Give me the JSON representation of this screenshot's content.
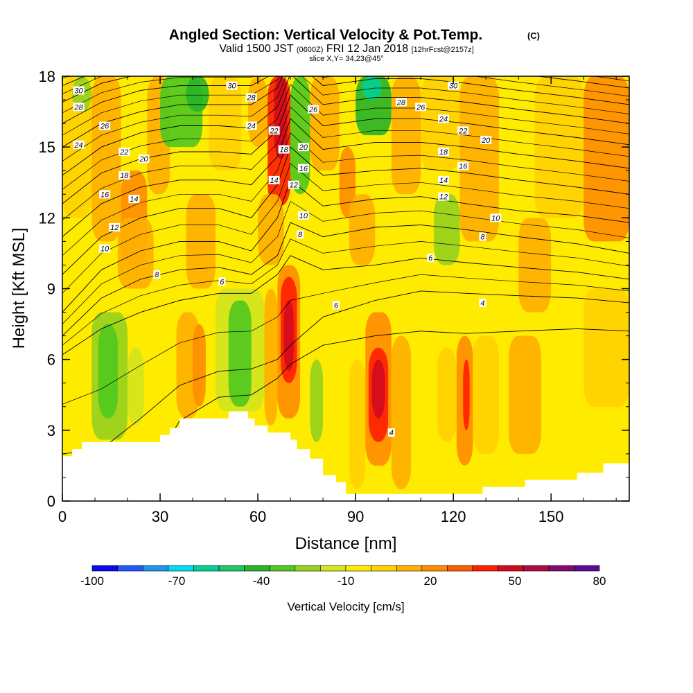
{
  "chart_data": {
    "type": "heatmap",
    "title": "Angled Section: Vertical Velocity & Pot.Temp.",
    "title_mark": "(C)",
    "subtitle": {
      "valid_text": "Valid 1500 JST",
      "utc_text": "(0600Z)",
      "date_text": "FRI 12 Jan 2018",
      "forecast_text": "[12hrFcst@2157z]"
    },
    "slice_text": "slice X,Y= 34,23@45°",
    "xlabel": "Distance [nm]",
    "ylabel": "Height [Kft MSL]",
    "xlim": [
      0,
      174
    ],
    "ylim": [
      0,
      18
    ],
    "xticks": [
      0,
      30,
      60,
      90,
      120,
      150
    ],
    "yticks": [
      0,
      3,
      6,
      9,
      12,
      15,
      18
    ],
    "colorbar": {
      "label": "Vertical Velocity [cm/s]",
      "tick_labels": [
        "-100",
        "-70",
        "-40",
        "-10",
        "20",
        "50",
        "80"
      ],
      "tick_values": [
        -100,
        -70,
        -40,
        -10,
        20,
        50,
        80
      ],
      "range": [
        -100,
        80
      ],
      "colors": [
        "#0a0af0",
        "#1e5af5",
        "#1e96f0",
        "#00dcf0",
        "#00d296",
        "#1ec864",
        "#28b428",
        "#50c81e",
        "#96d21e",
        "#d2e61e",
        "#ffeb00",
        "#ffd200",
        "#ffaf00",
        "#ff8c00",
        "#ff5a00",
        "#ff1e00",
        "#d20a1e",
        "#aa0a46",
        "#820a6e",
        "#5a0a96"
      ]
    },
    "terrain_profile": {
      "x": [
        0,
        3,
        3,
        6,
        6,
        30,
        30,
        33,
        33,
        36,
        36,
        51,
        51,
        57,
        57,
        59,
        59,
        63,
        63,
        70,
        70,
        72,
        72,
        76,
        76,
        80,
        80,
        84,
        84,
        87,
        87,
        93,
        93,
        129,
        129,
        142,
        142,
        158,
        158,
        166,
        166,
        174
      ],
      "y": [
        1.9,
        1.9,
        2.2,
        2.2,
        2.5,
        2.5,
        2.8,
        2.8,
        3.1,
        3.1,
        3.5,
        3.5,
        3.8,
        3.8,
        3.5,
        3.5,
        3.2,
        3.2,
        2.9,
        2.9,
        2.6,
        2.6,
        2.2,
        2.2,
        1.8,
        1.8,
        1.1,
        1.1,
        0.8,
        0.8,
        0.3,
        0.3,
        0.3,
        0.3,
        0.6,
        0.6,
        0.9,
        0.9,
        1.2,
        1.2,
        1.6,
        1.6
      ]
    },
    "velocity_cells": [
      {
        "x": [
          0,
          9
        ],
        "y": [
          12,
          18
        ],
        "w": 5
      },
      {
        "x": [
          3,
          9
        ],
        "y": [
          16.5,
          18
        ],
        "w": -20
      },
      {
        "x": [
          9,
          18
        ],
        "y": [
          11,
          18
        ],
        "w": 15
      },
      {
        "x": [
          18,
          26
        ],
        "y": [
          10,
          14
        ],
        "w": 20
      },
      {
        "x": [
          26,
          33
        ],
        "y": [
          13,
          18
        ],
        "w": 10
      },
      {
        "x": [
          30,
          43
        ],
        "y": [
          15,
          18
        ],
        "w": -30
      },
      {
        "x": [
          38,
          45
        ],
        "y": [
          16.5,
          18
        ],
        "w": -45
      },
      {
        "x": [
          45,
          55
        ],
        "y": [
          14,
          18
        ],
        "w": 5
      },
      {
        "x": [
          57,
          63
        ],
        "y": [
          15,
          18
        ],
        "w": 15
      },
      {
        "x": [
          63,
          70
        ],
        "y": [
          12.5,
          18
        ],
        "w": 35
      },
      {
        "x": [
          65,
          69
        ],
        "y": [
          14.5,
          18
        ],
        "w": 50
      },
      {
        "x": [
          70,
          76
        ],
        "y": [
          13,
          18
        ],
        "w": -30
      },
      {
        "x": [
          76,
          85
        ],
        "y": [
          14,
          18
        ],
        "w": 10
      },
      {
        "x": [
          85,
          90
        ],
        "y": [
          12,
          15
        ],
        "w": 20
      },
      {
        "x": [
          90,
          101
        ],
        "y": [
          15.5,
          18
        ],
        "w": -40
      },
      {
        "x": [
          92,
          98
        ],
        "y": [
          17,
          18
        ],
        "w": -60
      },
      {
        "x": [
          101,
          110
        ],
        "y": [
          13,
          18
        ],
        "w": 15
      },
      {
        "x": [
          110,
          122
        ],
        "y": [
          14,
          18
        ],
        "w": 5
      },
      {
        "x": [
          122,
          134
        ],
        "y": [
          11,
          18
        ],
        "w": 15
      },
      {
        "x": [
          134,
          145
        ],
        "y": [
          10,
          18
        ],
        "w": -10
      },
      {
        "x": [
          145,
          160
        ],
        "y": [
          12,
          18
        ],
        "w": 5
      },
      {
        "x": [
          160,
          174
        ],
        "y": [
          11,
          18
        ],
        "w": 20
      },
      {
        "x": [
          17,
          28
        ],
        "y": [
          9,
          12
        ],
        "w": 15
      },
      {
        "x": [
          38,
          47
        ],
        "y": [
          9,
          13
        ],
        "w": 10
      },
      {
        "x": [
          60,
          68
        ],
        "y": [
          10,
          13
        ],
        "w": 15
      },
      {
        "x": [
          88,
          96
        ],
        "y": [
          10,
          13
        ],
        "w": 15
      },
      {
        "x": [
          104,
          112
        ],
        "y": [
          9,
          12
        ],
        "w": -10
      },
      {
        "x": [
          114,
          122
        ],
        "y": [
          10,
          13
        ],
        "w": -20
      },
      {
        "x": [
          140,
          150
        ],
        "y": [
          8,
          12
        ],
        "w": 10
      },
      {
        "x": [
          166,
          174
        ],
        "y": [
          8.5,
          11
        ],
        "w": -10
      },
      {
        "x": [
          4,
          15
        ],
        "y": [
          3,
          8.5
        ],
        "w": -10
      },
      {
        "x": [
          9,
          20
        ],
        "y": [
          2.6,
          8
        ],
        "w": -25
      },
      {
        "x": [
          11,
          17
        ],
        "y": [
          3.5,
          7.5
        ],
        "w": -35
      },
      {
        "x": [
          20,
          25
        ],
        "y": [
          3.2,
          6.5
        ],
        "w": -15
      },
      {
        "x": [
          35,
          42
        ],
        "y": [
          3.5,
          8
        ],
        "w": 15
      },
      {
        "x": [
          40,
          44
        ],
        "y": [
          4,
          7.5
        ],
        "w": 25
      },
      {
        "x": [
          47,
          62
        ],
        "y": [
          3.8,
          9
        ],
        "w": -15
      },
      {
        "x": [
          51,
          58
        ],
        "y": [
          4,
          8.5
        ],
        "w": -30
      },
      {
        "x": [
          62,
          66
        ],
        "y": [
          3.2,
          9
        ],
        "w": 10
      },
      {
        "x": [
          66,
          73
        ],
        "y": [
          3.5,
          10
        ],
        "w": 25
      },
      {
        "x": [
          67,
          72
        ],
        "y": [
          5,
          9.5
        ],
        "w": 40
      },
      {
        "x": [
          68,
          71
        ],
        "y": [
          5.5,
          8.5
        ],
        "w": 50
      },
      {
        "x": [
          73,
          80
        ],
        "y": [
          2.2,
          8
        ],
        "w": -10
      },
      {
        "x": [
          76,
          80
        ],
        "y": [
          2.5,
          6
        ],
        "w": -25
      },
      {
        "x": [
          80,
          88
        ],
        "y": [
          1.5,
          6
        ],
        "w": -10
      },
      {
        "x": [
          88,
          93
        ],
        "y": [
          0.5,
          6
        ],
        "w": 5
      },
      {
        "x": [
          93,
          101
        ],
        "y": [
          1.5,
          8
        ],
        "w": 25
      },
      {
        "x": [
          94,
          100
        ],
        "y": [
          2.5,
          6.5
        ],
        "w": 40
      },
      {
        "x": [
          95,
          99
        ],
        "y": [
          3.5,
          6
        ],
        "w": 50
      },
      {
        "x": [
          101,
          107
        ],
        "y": [
          0.5,
          7
        ],
        "w": 10
      },
      {
        "x": [
          107,
          115
        ],
        "y": [
          2,
          6
        ],
        "w": -10
      },
      {
        "x": [
          115,
          121
        ],
        "y": [
          2.5,
          6.5
        ],
        "w": 5
      },
      {
        "x": [
          121,
          126
        ],
        "y": [
          1.5,
          7
        ],
        "w": 20
      },
      {
        "x": [
          123,
          125
        ],
        "y": [
          3,
          6
        ],
        "w": 40
      },
      {
        "x": [
          126,
          134
        ],
        "y": [
          2,
          7
        ],
        "w": 5
      },
      {
        "x": [
          137,
          147
        ],
        "y": [
          2,
          7
        ],
        "w": 10
      },
      {
        "x": [
          160,
          174
        ],
        "y": [
          4,
          9
        ],
        "w": 5
      }
    ],
    "isentropes": [
      {
        "label": "4",
        "levels": [
          -0.5,
          -0.5,
          0.6,
          3.4,
          4.4,
          4.5,
          5.2,
          5.8,
          6.6,
          7.0,
          7.2,
          7.1,
          7.2,
          7.3,
          7.2
        ]
      },
      {
        "label": "6",
        "levels": [
          2.0,
          2.2,
          3.5,
          4.9,
          5.5,
          5.6,
          6.0,
          6.6,
          7.8,
          8.5,
          8.9,
          8.8,
          8.7,
          8.6,
          8.4
        ]
      },
      {
        "label": "8",
        "levels": [
          6.2,
          7.3,
          8.0,
          8.5,
          8.8,
          8.8,
          9.6,
          10.4,
          9.8,
          10.0,
          10.3,
          10.1,
          9.9,
          9.7,
          9.4
        ]
      },
      {
        "label": "10",
        "levels": [
          7.0,
          8.6,
          9.4,
          9.8,
          9.9,
          9.6,
          10.4,
          11.8,
          11.2,
          11.6,
          11.7,
          11.5,
          11.2,
          10.9,
          10.5
        ]
      },
      {
        "label": "12",
        "levels": [
          8.0,
          9.8,
          10.6,
          11.0,
          11.0,
          10.6,
          12.0,
          13.6,
          12.5,
          12.8,
          12.9,
          12.6,
          12.3,
          12.1,
          11.8
        ]
      },
      {
        "label": "14",
        "levels": [
          9.6,
          11.2,
          12.0,
          12.4,
          12.4,
          12.0,
          13.4,
          15.0,
          13.8,
          14.0,
          14.1,
          13.9,
          13.6,
          13.3,
          13.0
        ]
      },
      {
        "label": "16",
        "levels": [
          11.2,
          12.6,
          13.3,
          13.6,
          13.6,
          13.4,
          14.6,
          16.2,
          14.9,
          15.2,
          15.2,
          15.0,
          14.7,
          14.4,
          14.1
        ]
      },
      {
        "label": "18",
        "levels": [
          12.6,
          13.9,
          14.5,
          14.8,
          14.8,
          14.7,
          15.7,
          17.2,
          15.9,
          16.2,
          16.2,
          16.0,
          15.7,
          15.4,
          15.1
        ]
      },
      {
        "label": "20",
        "levels": [
          13.8,
          15.0,
          15.6,
          15.9,
          15.9,
          15.8,
          16.7,
          18.1,
          16.8,
          17.1,
          17.1,
          16.9,
          16.6,
          16.3,
          16.0
        ]
      },
      {
        "label": "22",
        "levels": [
          15.0,
          16.0,
          16.5,
          16.8,
          16.8,
          16.8,
          17.5,
          18.8,
          17.6,
          17.9,
          17.9,
          17.7,
          17.4,
          17.1,
          16.8
        ]
      },
      {
        "label": "24",
        "levels": [
          16.0,
          16.9,
          17.4,
          17.6,
          17.6,
          17.6,
          18.2,
          19.4,
          18.3,
          18.6,
          18.6,
          18.4,
          18.1,
          17.8,
          17.5
        ]
      },
      {
        "label": "26",
        "levels": [
          16.9,
          17.7,
          18.1,
          18.3,
          18.3,
          18.3,
          18.8,
          19.9,
          18.9,
          19.2,
          19.2,
          19.0,
          18.7,
          18.4,
          18.1
        ]
      },
      {
        "label": "28",
        "levels": [
          17.6,
          18.3,
          18.7,
          18.9,
          18.9,
          18.9,
          19.3,
          20.3,
          19.4,
          19.7,
          19.7,
          19.5,
          19.2,
          18.9,
          18.6
        ]
      },
      {
        "label": "30",
        "levels": [
          18.2,
          18.8,
          19.2,
          19.4,
          19.4,
          19.4,
          19.7,
          20.6,
          19.8,
          20.1,
          20.1,
          19.9,
          19.6,
          19.3,
          19.0
        ]
      }
    ],
    "isentrope_x": [
      0,
      12,
      24,
      36,
      48,
      58,
      66,
      70,
      80,
      96,
      110,
      124,
      140,
      158,
      174
    ],
    "contour_labels": [
      {
        "text": "30",
        "x": 5,
        "y": 17.4
      },
      {
        "text": "28",
        "x": 5,
        "y": 16.7
      },
      {
        "text": "26",
        "x": 13,
        "y": 15.9
      },
      {
        "text": "24",
        "x": 5,
        "y": 15.1
      },
      {
        "text": "22",
        "x": 19,
        "y": 14.8
      },
      {
        "text": "20",
        "x": 25,
        "y": 14.5
      },
      {
        "text": "18",
        "x": 19,
        "y": 13.8
      },
      {
        "text": "16",
        "x": 13,
        "y": 13.0
      },
      {
        "text": "14",
        "x": 22,
        "y": 12.8
      },
      {
        "text": "12",
        "x": 16,
        "y": 11.6
      },
      {
        "text": "10",
        "x": 13,
        "y": 10.7
      },
      {
        "text": "8",
        "x": 29,
        "y": 9.6
      },
      {
        "text": "6",
        "x": 49,
        "y": 9.3
      },
      {
        "text": "30",
        "x": 52,
        "y": 17.6
      },
      {
        "text": "28",
        "x": 58,
        "y": 17.1
      },
      {
        "text": "24",
        "x": 58,
        "y": 15.9
      },
      {
        "text": "22",
        "x": 65,
        "y": 15.7
      },
      {
        "text": "18",
        "x": 68,
        "y": 14.9
      },
      {
        "text": "14",
        "x": 65,
        "y": 13.6
      },
      {
        "text": "12",
        "x": 71,
        "y": 13.4
      },
      {
        "text": "26",
        "x": 77,
        "y": 16.6
      },
      {
        "text": "20",
        "x": 74,
        "y": 15.0
      },
      {
        "text": "16",
        "x": 74,
        "y": 14.1
      },
      {
        "text": "10",
        "x": 74,
        "y": 12.1
      },
      {
        "text": "8",
        "x": 73,
        "y": 11.3
      },
      {
        "text": "6",
        "x": 84,
        "y": 8.3
      },
      {
        "text": "30",
        "x": 120,
        "y": 17.6
      },
      {
        "text": "28",
        "x": 104,
        "y": 16.9
      },
      {
        "text": "26",
        "x": 110,
        "y": 16.7
      },
      {
        "text": "24",
        "x": 117,
        "y": 16.2
      },
      {
        "text": "22",
        "x": 123,
        "y": 15.7
      },
      {
        "text": "20",
        "x": 130,
        "y": 15.3
      },
      {
        "text": "18",
        "x": 117,
        "y": 14.8
      },
      {
        "text": "16",
        "x": 123,
        "y": 14.2
      },
      {
        "text": "14",
        "x": 117,
        "y": 13.6
      },
      {
        "text": "12",
        "x": 117,
        "y": 12.9
      },
      {
        "text": "10",
        "x": 133,
        "y": 12.0
      },
      {
        "text": "8",
        "x": 129,
        "y": 11.2
      },
      {
        "text": "6",
        "x": 113,
        "y": 10.3
      },
      {
        "text": "4",
        "x": 129,
        "y": 8.4
      },
      {
        "text": "4",
        "x": 101,
        "y": 2.9
      }
    ]
  }
}
